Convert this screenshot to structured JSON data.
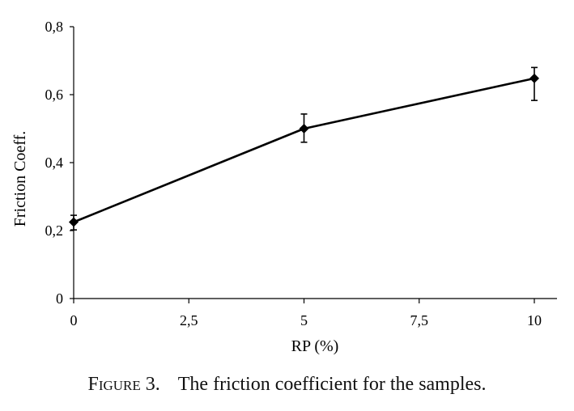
{
  "caption": {
    "label": "Figure 3.",
    "text": "The friction coefficient for the samples."
  },
  "chart_data": {
    "type": "line",
    "title": "",
    "xlabel": "RP (%)",
    "ylabel": "Friction Coeff.",
    "xlim": [
      0,
      10
    ],
    "ylim": [
      0,
      0.8
    ],
    "x_ticks": [
      0,
      2.5,
      5,
      7.5,
      10
    ],
    "x_tick_labels": [
      "0",
      "2,5",
      "5",
      "7,5",
      "10"
    ],
    "y_ticks": [
      0,
      0.2,
      0.4,
      0.6,
      0.8
    ],
    "y_tick_labels": [
      "0",
      "0,2",
      "0,4",
      "0,6",
      "0,8"
    ],
    "grid": false,
    "series": [
      {
        "x": [
          0,
          5,
          10
        ],
        "y": [
          0.225,
          0.5,
          0.648
        ],
        "y_upper": [
          0.245,
          0.543,
          0.68
        ],
        "y_lower": [
          0.202,
          0.46,
          0.583
        ],
        "marker": "diamond",
        "color": "#000000"
      }
    ]
  }
}
